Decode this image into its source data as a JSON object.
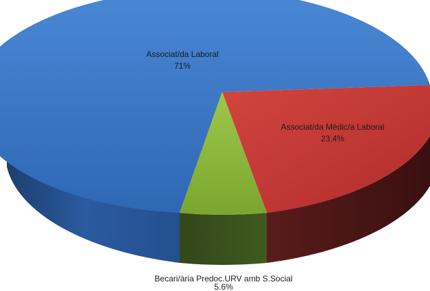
{
  "chart_data": {
    "type": "pie",
    "style": "3d",
    "title": "",
    "slices": [
      {
        "label": "Associat/da Laboral",
        "value_label": "71%",
        "value": 71,
        "color": "#3c78c8"
      },
      {
        "label": "Associat/da Mèdic/a Laboral",
        "value_label": "23,4%",
        "value": 23.4,
        "color": "#c8373a"
      },
      {
        "label": "Becari/ària Predoc.URV amb S.Social",
        "value_label": "5.6%",
        "value": 5.6,
        "color": "#8fba3c"
      }
    ]
  }
}
